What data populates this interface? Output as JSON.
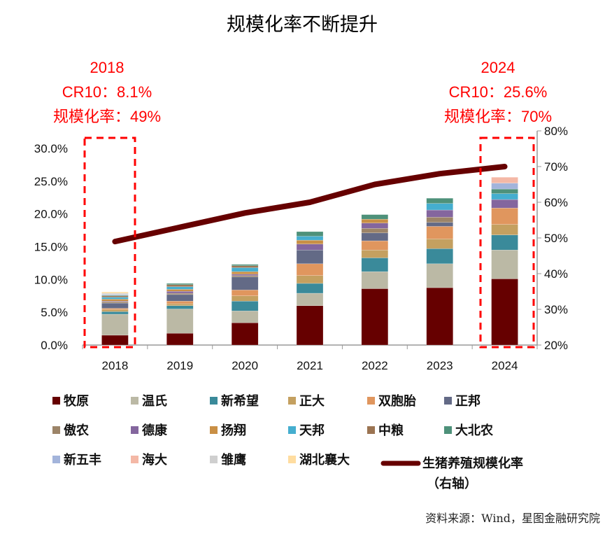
{
  "chart_data": {
    "type": "bar",
    "title": "规模化率不断提升",
    "categories": [
      "2018",
      "2019",
      "2020",
      "2021",
      "2022",
      "2023",
      "2024"
    ],
    "left_axis": {
      "min": 0,
      "max": 30,
      "step": 5,
      "ticks": [
        "0.0%",
        "5.0%",
        "10.0%",
        "15.0%",
        "20.0%",
        "25.0%",
        "30.0%"
      ]
    },
    "right_axis": {
      "min": 20,
      "max": 80,
      "step": 10,
      "ticks": [
        "20%",
        "30%",
        "40%",
        "50%",
        "60%",
        "70%",
        "80%"
      ]
    },
    "series": [
      {
        "name": "牧原",
        "color": "#660000",
        "values": [
          1.5,
          1.8,
          3.4,
          6.0,
          8.6,
          8.75,
          10.1
        ]
      },
      {
        "name": "温氏",
        "color": "#BBB9A5",
        "values": [
          3.2,
          3.7,
          1.8,
          1.9,
          2.6,
          3.65,
          4.4
        ]
      },
      {
        "name": "新希望",
        "color": "#3A8A9A",
        "values": [
          0.4,
          0.5,
          1.5,
          1.5,
          2.1,
          2.3,
          2.3
        ]
      },
      {
        "name": "正大",
        "color": "#C4A060",
        "values": [
          0.3,
          0.3,
          0.8,
          1.2,
          1.2,
          1.5,
          1.6
        ]
      },
      {
        "name": "双胞胎",
        "color": "#E0965E",
        "values": [
          0.2,
          0.4,
          0.9,
          1.8,
          1.4,
          1.9,
          2.5
        ]
      },
      {
        "name": "正邦",
        "color": "#636A86",
        "values": [
          0.8,
          1.0,
          2.0,
          2.1,
          1.2,
          0.6,
          0
        ]
      },
      {
        "name": "傲农",
        "color": "#9C8468",
        "values": [
          0.2,
          0.2,
          0.2,
          0,
          0.7,
          0.8,
          0
        ]
      },
      {
        "name": "德康",
        "color": "#84669E",
        "values": [
          0.1,
          0.3,
          0.2,
          0.9,
          0.8,
          1.1,
          1.3
        ]
      },
      {
        "name": "扬翔",
        "color": "#C98F45",
        "values": [
          0.3,
          0.3,
          0.4,
          0.6,
          0.6,
          0,
          0
        ]
      },
      {
        "name": "天邦",
        "color": "#45AECF",
        "values": [
          0.3,
          0.4,
          0.6,
          0.6,
          0,
          1.0,
          0.9
        ]
      },
      {
        "name": "中粮",
        "color": "#9B7452",
        "values": [
          0.2,
          0.3,
          0.3,
          0,
          0,
          0,
          0
        ]
      },
      {
        "name": "大北农",
        "color": "#4E917A",
        "values": [
          0.1,
          0.2,
          0.2,
          0.7,
          0.7,
          0.8,
          0.7
        ]
      },
      {
        "name": "新五丰",
        "color": "#A3B4DB",
        "values": [
          0.1,
          0,
          0,
          0,
          0,
          0,
          0.9
        ]
      },
      {
        "name": "海大",
        "color": "#F4B8A6",
        "values": [
          0,
          0,
          0,
          0,
          0,
          0,
          0.9
        ]
      },
      {
        "name": "雏鹰",
        "color": "#CFCFCF",
        "values": [
          0.2,
          0,
          0,
          0,
          0,
          0,
          0
        ]
      },
      {
        "name": "湖北襄大",
        "color": "#FFDDA0",
        "values": [
          0.2,
          0,
          0,
          0,
          0,
          0,
          0
        ]
      }
    ],
    "line_series": {
      "name": "生猪养殖规模化率",
      "axis_note": "（右轴）",
      "color": "#660000",
      "values": [
        49,
        53,
        57,
        60,
        65,
        68,
        70
      ]
    },
    "annotations": [
      {
        "year": "2018",
        "cr10": "CR10：8.1%",
        "rate": "规模化率：49%"
      },
      {
        "year": "2024",
        "cr10": "CR10：25.6%",
        "rate": "规模化率：70%"
      }
    ],
    "legend_position": "bottom"
  },
  "source": "资料来源：Wind，星图金融研究院"
}
